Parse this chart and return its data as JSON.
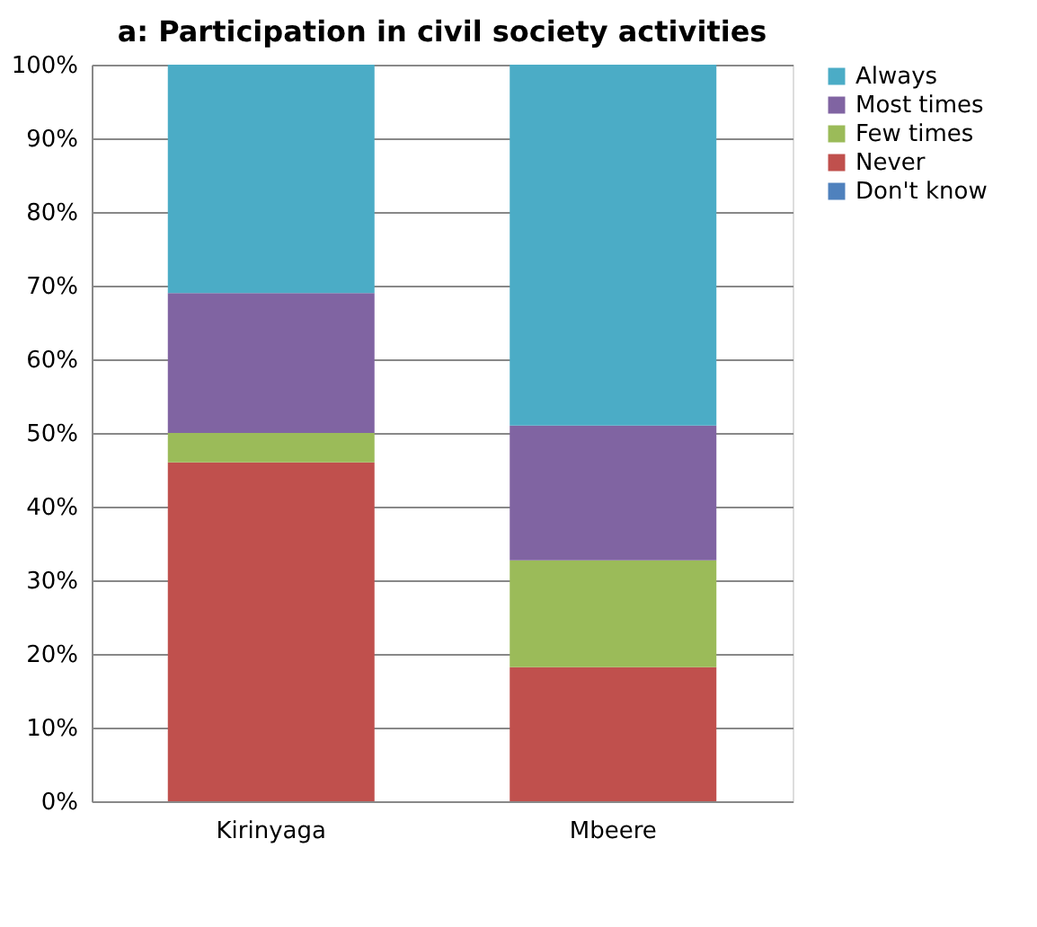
{
  "chart_data": {
    "type": "bar",
    "title": "a: Participation in civil society activities",
    "stacked": true,
    "categories": [
      "Kirinyaga",
      "Mbeere"
    ],
    "series": [
      {
        "name": "Don't know",
        "color": "#4f81bd",
        "values": [
          0,
          0
        ]
      },
      {
        "name": "Never",
        "color": "#c0504d",
        "values": [
          46,
          18.2
        ]
      },
      {
        "name": "Few times",
        "color": "#9bbb59",
        "values": [
          4,
          14.5
        ]
      },
      {
        "name": "Most times",
        "color": "#8064a2",
        "values": [
          19,
          18.3
        ]
      },
      {
        "name": "Always",
        "color": "#4bacc6",
        "values": [
          31,
          49
        ]
      }
    ],
    "ylim": [
      0,
      100
    ],
    "yticks": [
      {
        "value": 0,
        "label": "0%"
      },
      {
        "value": 10,
        "label": "10%"
      },
      {
        "value": 20,
        "label": "20%"
      },
      {
        "value": 30,
        "label": "30%"
      },
      {
        "value": 40,
        "label": "40%"
      },
      {
        "value": 50,
        "label": "50%"
      },
      {
        "value": 60,
        "label": "60%"
      },
      {
        "value": 70,
        "label": "70%"
      },
      {
        "value": 80,
        "label": "80%"
      },
      {
        "value": 90,
        "label": "90%"
      },
      {
        "value": 100,
        "label": "100%"
      }
    ],
    "grid": "y",
    "legend": "right"
  }
}
